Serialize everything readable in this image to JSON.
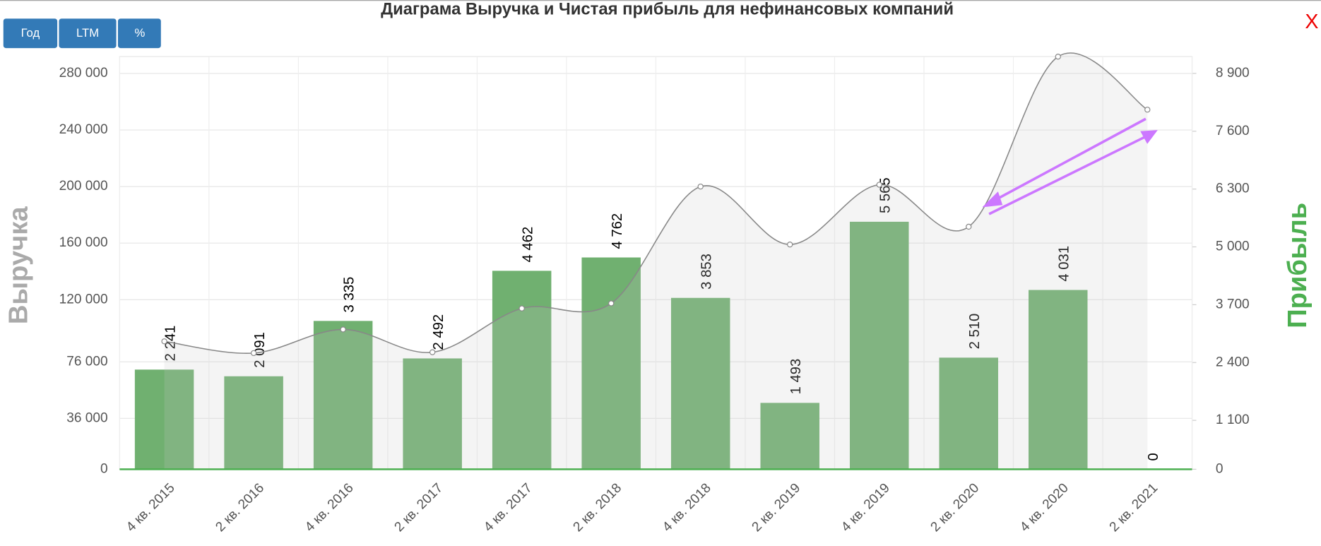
{
  "buttons": [
    "Год",
    "LTM",
    "%"
  ],
  "close": "X",
  "chart_data": {
    "type": "bar",
    "title": "Диаграма Выручка и Чистая прибыль для нефинансовых компаний",
    "ylabel": "Выручка",
    "y2label": "Прибыль",
    "categories": [
      "4 кв. 2015",
      "2 кв. 2016",
      "4 кв. 2016",
      "2 кв. 2017",
      "4 кв. 2017",
      "2 кв. 2018",
      "4 кв. 2018",
      "2 кв. 2019",
      "4 кв. 2019",
      "2 кв. 2020",
      "4 кв. 2020",
      "2 кв. 2021"
    ],
    "series": [
      {
        "type": "bar",
        "axis": "y2",
        "color": "#70b070",
        "values": [
          2241,
          2091,
          3335,
          2492,
          4462,
          4762,
          3853,
          1493,
          5565,
          2510,
          4031,
          0
        ],
        "value_labels": [
          "2 241",
          "2 091",
          "3 335",
          "2 492",
          "4 462",
          "4 762",
          "3 853",
          "1 493",
          "5 565",
          "2 510",
          "4 031",
          "0"
        ]
      },
      {
        "type": "line",
        "axis": "y",
        "color": "#888888",
        "values": [
          90500,
          82200,
          98900,
          82800,
          113800,
          117400,
          200000,
          159000,
          201300,
          171600,
          291900,
          254400
        ]
      }
    ],
    "ylim": [
      0,
      292000
    ],
    "yticks": [
      0,
      {
        "value": 36000,
        "label": "36 000"
      },
      {
        "value": 76000,
        "label": "76 000"
      },
      {
        "value": 120000,
        "label": "120 000"
      },
      {
        "value": 160000,
        "label": "160 000"
      },
      {
        "value": 200000,
        "label": "200 000"
      },
      {
        "value": 240000,
        "label": "240 000"
      },
      {
        "value": 280000,
        "label": "280 000"
      }
    ],
    "y2lim": [
      0,
      9280
    ],
    "y2ticks": [
      0,
      {
        "value": 1100,
        "label": "1 100"
      },
      {
        "value": 2400,
        "label": "2 400"
      },
      {
        "value": 3700,
        "label": "3 700"
      },
      {
        "value": 5000,
        "label": "5 000"
      },
      {
        "value": 6300,
        "label": "6 300"
      },
      {
        "value": 7600,
        "label": "7 600"
      },
      {
        "value": 8900,
        "label": "8 900"
      }
    ],
    "grid": true
  }
}
